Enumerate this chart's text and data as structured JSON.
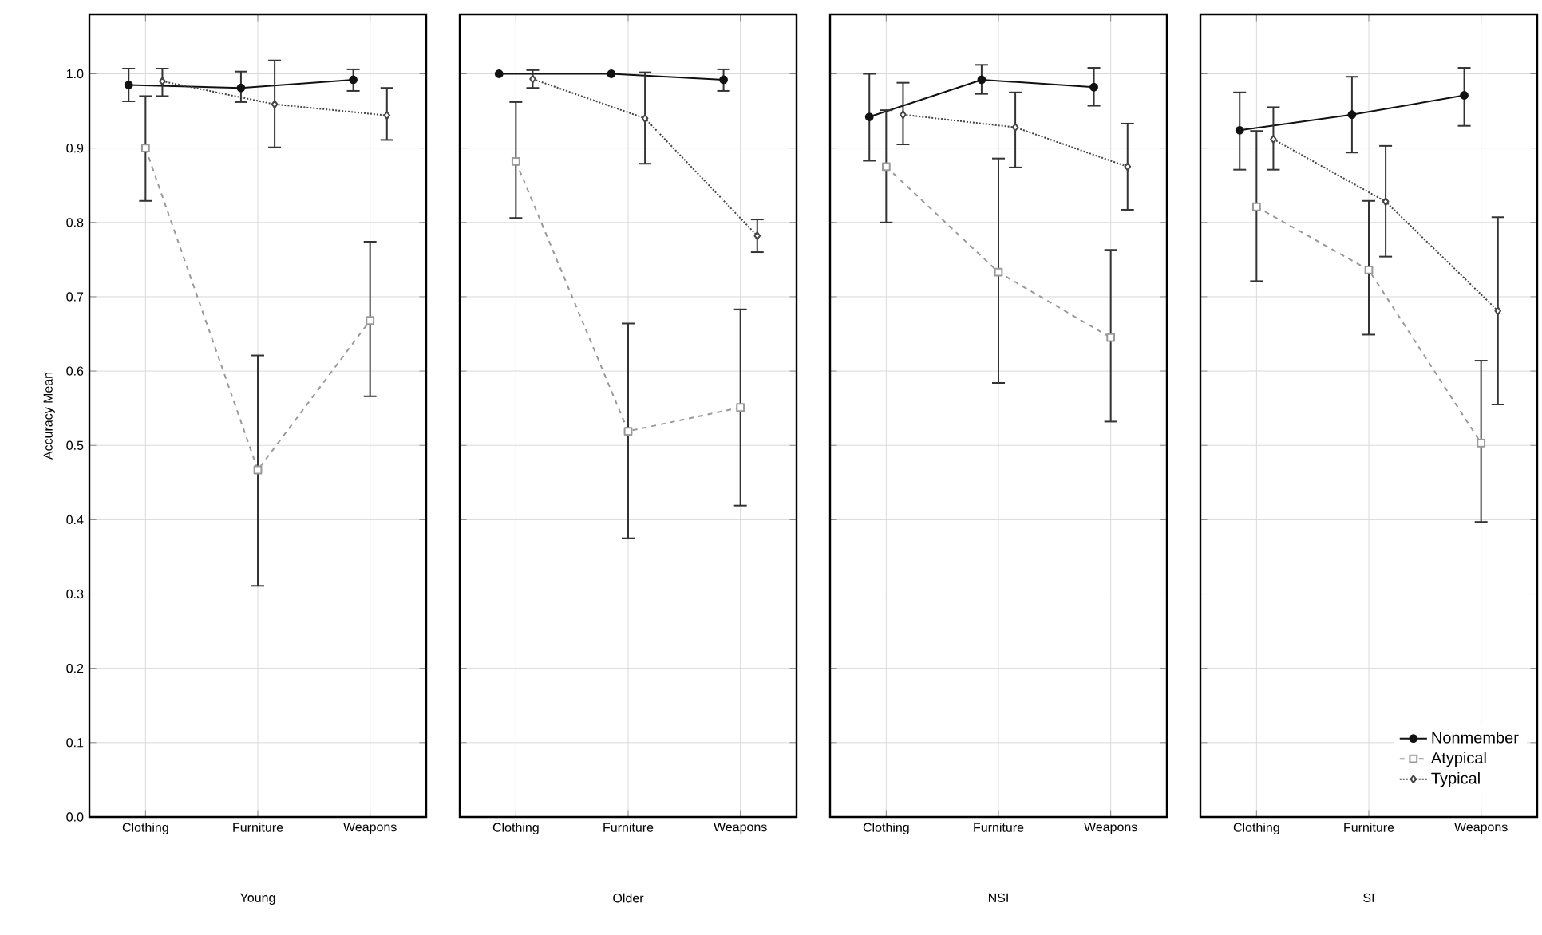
{
  "chart_data": [
    {
      "type": "line",
      "xlabel": "Young",
      "ylabel": "Accuracy Mean",
      "categories": [
        "Clothing",
        "Furniture",
        "Weapons"
      ],
      "ylim": [
        0,
        1.08
      ],
      "yticks": [
        {
          "value": 0,
          "label": "0.0"
        },
        {
          "value": 0.1,
          "label": "0.1"
        },
        {
          "value": 0.2,
          "label": "0.2"
        },
        {
          "value": 0.3,
          "label": "0.3"
        },
        {
          "value": 0.4,
          "label": "0.4"
        },
        {
          "value": 0.5,
          "label": "0.5"
        },
        {
          "value": 0.6,
          "label": "0.6"
        },
        {
          "value": 0.7,
          "label": "0.7"
        },
        {
          "value": 0.8,
          "label": "0.8"
        },
        {
          "value": 0.9,
          "label": "0.9"
        },
        {
          "value": 1.0,
          "label": "1.0"
        }
      ],
      "grid": true,
      "series": [
        {
          "color": "#111111",
          "marker": "circle",
          "line_style": "solid",
          "values": [
            0.985,
            0.981,
            0.992
          ],
          "errors": [
            [
              0.963,
              1.007
            ],
            [
              0.962,
              1.003
            ],
            [
              0.977,
              1.006
            ]
          ]
        },
        {
          "color": "#999999",
          "marker": "square",
          "line_style": "dashed",
          "values": [
            0.9,
            0.467,
            0.668
          ],
          "errors": [
            [
              0.829,
              0.97
            ],
            [
              0.311,
              0.621
            ],
            [
              0.566,
              0.774
            ]
          ]
        },
        {
          "color": "#444444",
          "marker": "diamond",
          "line_style": "dotted",
          "values": [
            0.99,
            0.959,
            0.944
          ],
          "errors": [
            [
              0.97,
              1.007
            ],
            [
              0.901,
              1.018
            ],
            [
              0.911,
              0.981
            ]
          ]
        }
      ]
    },
    {
      "type": "line",
      "xlabel": "Older",
      "categories": [
        "Clothing",
        "Furniture",
        "Weapons"
      ],
      "ylim": [
        0,
        1.08
      ],
      "tick_labels": "x",
      "grid": true,
      "series": [
        {
          "color": "#111111",
          "marker": "circle",
          "line_style": "solid",
          "values": [
            1.0,
            1.0,
            0.992
          ],
          "errors": [
            null,
            null,
            [
              0.977,
              1.006
            ]
          ]
        },
        {
          "color": "#999999",
          "marker": "square",
          "line_style": "dashed",
          "values": [
            0.882,
            0.519,
            0.551
          ],
          "errors": [
            [
              0.806,
              0.962
            ],
            [
              0.375,
              0.664
            ],
            [
              0.419,
              0.683
            ]
          ]
        },
        {
          "color": "#444444",
          "marker": "diamond",
          "line_style": "dotted",
          "values": [
            0.993,
            0.94,
            0.782
          ],
          "errors": [
            [
              0.981,
              1.005
            ],
            [
              0.879,
              1.002
            ],
            [
              0.76,
              0.804
            ]
          ]
        }
      ]
    },
    {
      "type": "line",
      "xlabel": "NSI",
      "categories": [
        "Clothing",
        "Furniture",
        "Weapons"
      ],
      "ylim": [
        0,
        1.08
      ],
      "tick_labels": "x",
      "grid": true,
      "series": [
        {
          "color": "#111111",
          "marker": "circle",
          "line_style": "solid",
          "values": [
            0.942,
            0.992,
            0.982
          ],
          "errors": [
            [
              0.883,
              1.0
            ],
            [
              0.973,
              1.012
            ],
            [
              0.957,
              1.008
            ]
          ]
        },
        {
          "color": "#999999",
          "marker": "square",
          "line_style": "dashed",
          "values": [
            0.875,
            0.733,
            0.645
          ],
          "errors": [
            [
              0.8,
              0.951
            ],
            [
              0.584,
              0.886
            ],
            [
              0.532,
              0.763
            ]
          ]
        },
        {
          "color": "#444444",
          "marker": "diamond",
          "line_style": "dotted",
          "values": [
            0.945,
            0.928,
            0.875
          ],
          "errors": [
            [
              0.905,
              0.988
            ],
            [
              0.874,
              0.975
            ],
            [
              0.817,
              0.933
            ]
          ]
        }
      ]
    },
    {
      "type": "line",
      "xlabel": "SI",
      "categories": [
        "Clothing",
        "Furniture",
        "Weapons"
      ],
      "ylim": [
        0,
        1.08
      ],
      "tick_labels": "x",
      "grid": true,
      "legend": "bottom right",
      "series": [
        {
          "name": "Nonmember",
          "color": "#111111",
          "marker": "circle",
          "line_style": "solid",
          "values": [
            0.924,
            0.945,
            0.971
          ],
          "errors": [
            [
              0.871,
              0.975
            ],
            [
              0.894,
              0.996
            ],
            [
              0.93,
              1.008
            ]
          ]
        },
        {
          "name": "Atypical",
          "color": "#999999",
          "marker": "square",
          "line_style": "dashed",
          "values": [
            0.821,
            0.736,
            0.503
          ],
          "errors": [
            [
              0.721,
              0.923
            ],
            [
              0.649,
              0.829
            ],
            [
              0.397,
              0.614
            ]
          ]
        },
        {
          "name": "Typical",
          "color": "#444444",
          "marker": "diamond",
          "line_style": "dotted",
          "values": [
            0.912,
            0.828,
            0.681
          ],
          "errors": [
            [
              0.871,
              0.955
            ],
            [
              0.754,
              0.903
            ],
            [
              0.555,
              0.807
            ]
          ]
        }
      ]
    }
  ]
}
